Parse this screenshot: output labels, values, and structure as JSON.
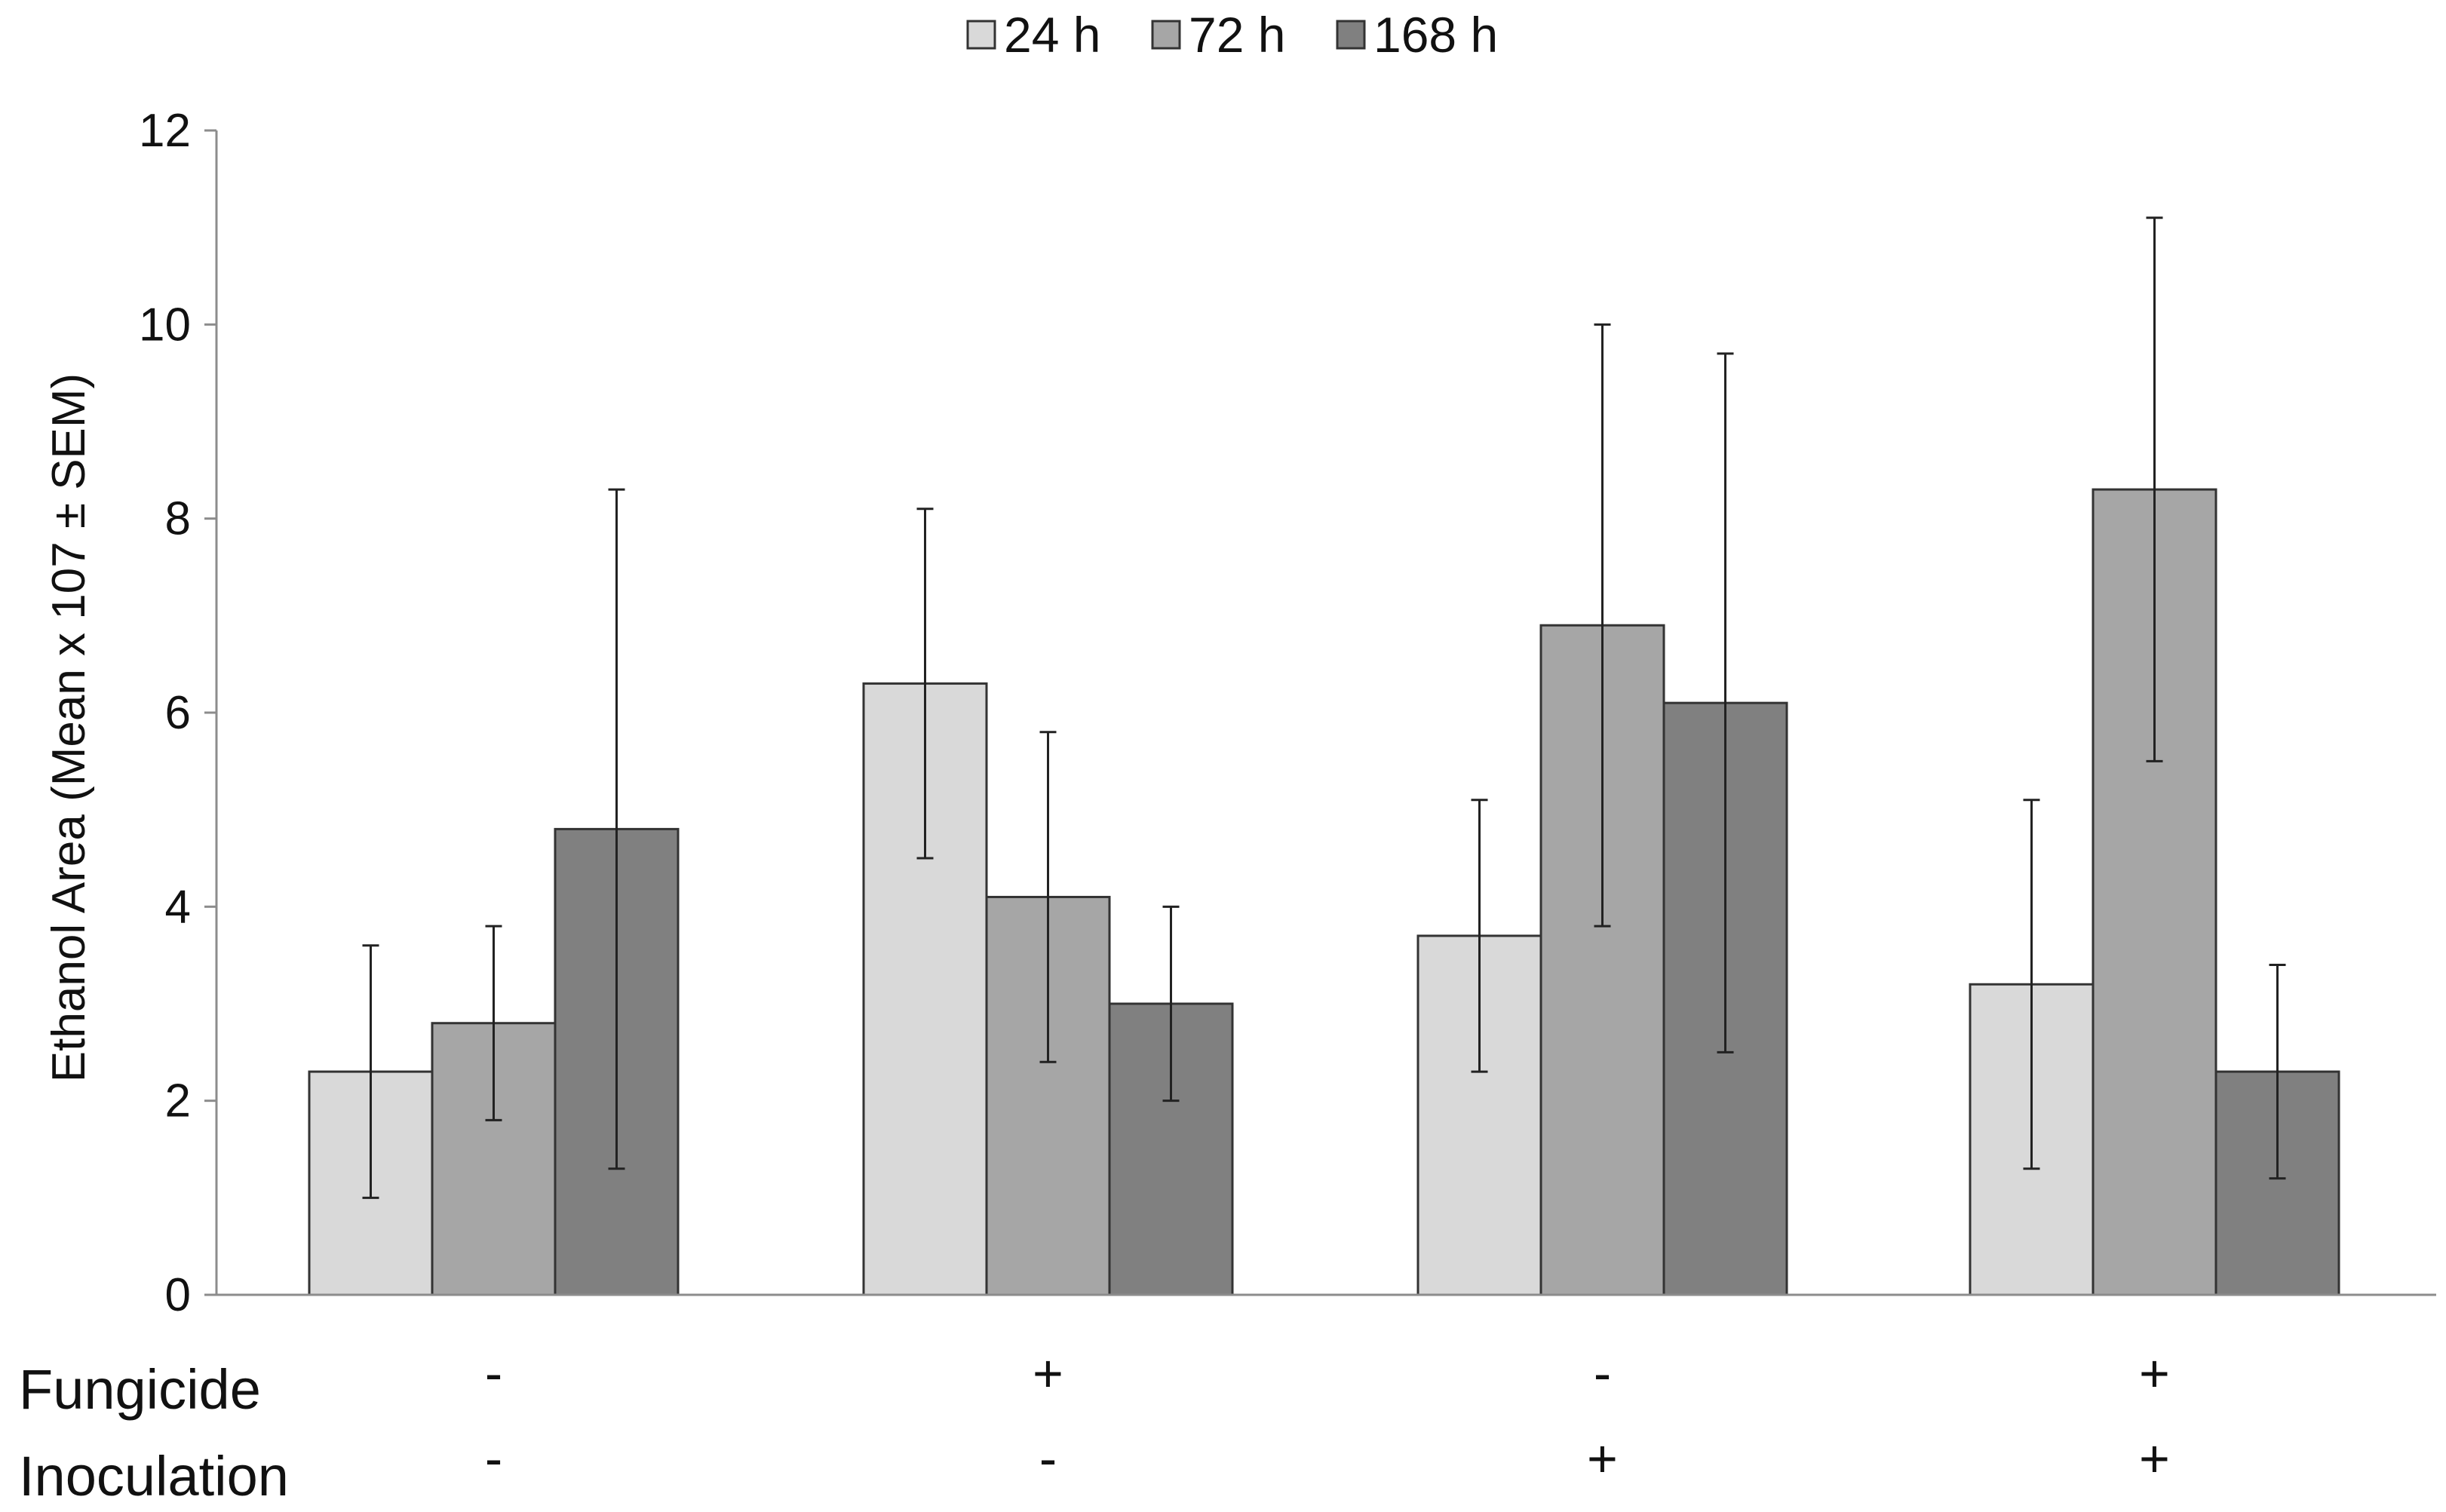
{
  "chart_data": {
    "type": "bar",
    "title": "",
    "xlabel": "",
    "ylabel": "Ethanol Area (Mean x 107 ± SEM)",
    "ylim": [
      0,
      12
    ],
    "yticks": [
      "0",
      "2",
      "4",
      "6",
      "8",
      "10",
      "12"
    ],
    "grid": false,
    "legend_position": "top-center",
    "categories": [
      {
        "fungicide": "-",
        "inoculation": "-"
      },
      {
        "fungicide": "+",
        "inoculation": "-"
      },
      {
        "fungicide": "-",
        "inoculation": "+"
      },
      {
        "fungicide": "+",
        "inoculation": "+"
      }
    ],
    "factor_labels": [
      "Fungicide",
      "Inoculation"
    ],
    "series": [
      {
        "name": "24 h",
        "color": "#d9d9d9",
        "values": [
          2.3,
          6.3,
          3.7,
          3.2
        ],
        "error_low": [
          1.0,
          4.5,
          2.3,
          1.3
        ],
        "error_high": [
          3.6,
          8.1,
          5.1,
          5.1
        ]
      },
      {
        "name": "72 h",
        "color": "#a6a6a6",
        "values": [
          2.8,
          4.1,
          6.9,
          8.3
        ],
        "error_low": [
          1.8,
          2.4,
          3.8,
          5.5
        ],
        "error_high": [
          3.8,
          5.8,
          10.0,
          11.1
        ]
      },
      {
        "name": "168 h",
        "color": "#808080",
        "values": [
          4.8,
          3.0,
          6.1,
          2.3
        ],
        "error_low": [
          1.3,
          2.0,
          2.5,
          1.2
        ],
        "error_high": [
          8.3,
          4.0,
          9.7,
          3.4
        ]
      }
    ]
  }
}
